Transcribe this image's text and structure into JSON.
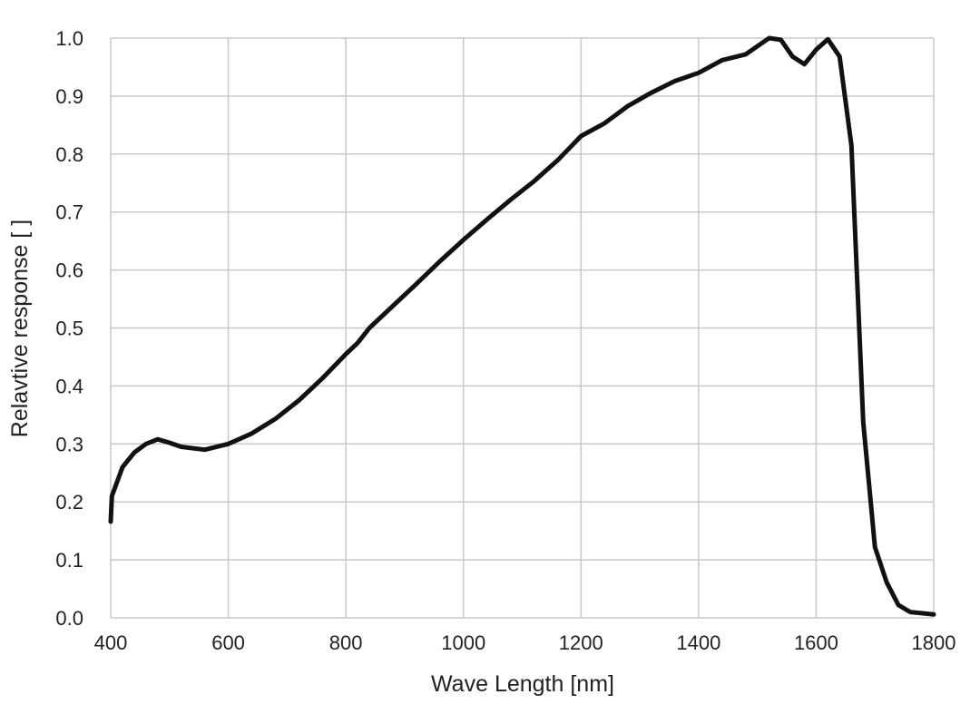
{
  "chart_data": {
    "type": "line",
    "title": "",
    "xlabel": "Wave Length [nm]",
    "ylabel": "Relavtive response [ ]",
    "xlim": [
      400,
      1800
    ],
    "ylim": [
      0.0,
      1.0
    ],
    "x_ticks": [
      "400",
      "600",
      "800",
      "1000",
      "1200",
      "1400",
      "1600",
      "1800"
    ],
    "y_ticks": [
      "0.0",
      "0.1",
      "0.2",
      "0.3",
      "0.4",
      "0.5",
      "0.6",
      "0.7",
      "0.8",
      "0.9",
      "1.0"
    ],
    "grid": true,
    "line_color": "#111111",
    "grid_color": "#c8c8c8",
    "series": [
      {
        "x": [
          400,
          402,
          420,
          440,
          460,
          480,
          500,
          520,
          560,
          600,
          640,
          680,
          720,
          760,
          800,
          820,
          840,
          880,
          920,
          960,
          1000,
          1040,
          1080,
          1120,
          1160,
          1200,
          1240,
          1280,
          1320,
          1360,
          1400,
          1440,
          1480,
          1520,
          1540,
          1560,
          1580,
          1600,
          1620,
          1640,
          1660,
          1680,
          1700,
          1720,
          1740,
          1760,
          1800
        ],
        "y": [
          0.166,
          0.21,
          0.26,
          0.285,
          0.3,
          0.308,
          0.302,
          0.295,
          0.29,
          0.3,
          0.318,
          0.343,
          0.375,
          0.413,
          0.455,
          0.474,
          0.5,
          0.538,
          0.576,
          0.615,
          0.652,
          0.687,
          0.721,
          0.753,
          0.789,
          0.831,
          0.853,
          0.883,
          0.906,
          0.926,
          0.94,
          0.962,
          0.972,
          1.0,
          0.997,
          0.968,
          0.955,
          0.98,
          0.998,
          0.968,
          0.815,
          0.338,
          0.122,
          0.061,
          0.022,
          0.01,
          0.006
        ]
      }
    ]
  }
}
